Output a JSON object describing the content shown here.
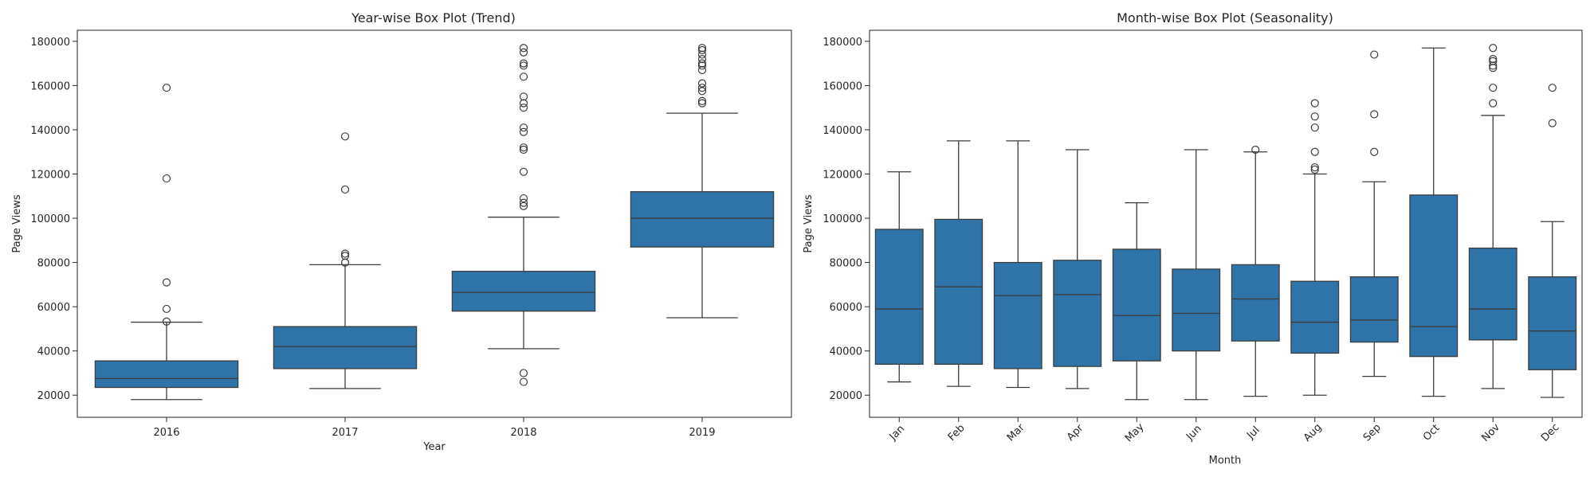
{
  "colors": {
    "box_fill": "#2f74a8",
    "line": "#3d3d3d",
    "axis": "#262626"
  },
  "chart_data": [
    {
      "type": "box",
      "title": "Year-wise Box Plot (Trend)",
      "xlabel": "Year",
      "ylabel": "Page Views",
      "ylim": [
        10000,
        185000
      ],
      "yticks": [
        20000,
        40000,
        60000,
        80000,
        100000,
        120000,
        140000,
        160000,
        180000
      ],
      "ytick_labels": [
        "20000",
        "40000",
        "60000",
        "80000",
        "100000",
        "120000",
        "140000",
        "160000",
        "180000"
      ],
      "xtick_rotation": 0,
      "grid": false,
      "categories": [
        "2016",
        "2017",
        "2018",
        "2019"
      ],
      "boxes": [
        {
          "min": 18000,
          "q1": 23500,
          "median": 27500,
          "q3": 35500,
          "max": 53000,
          "outliers": [
            53300,
            59000,
            71000,
            118000,
            159000
          ]
        },
        {
          "min": 23000,
          "q1": 32000,
          "median": 42000,
          "q3": 51000,
          "max": 79000,
          "outliers": [
            80000,
            83000,
            84000,
            113000,
            137000
          ]
        },
        {
          "min": 41000,
          "q1": 58000,
          "median": 66500,
          "q3": 76000,
          "max": 100500,
          "outliers": [
            26000,
            30000,
            105500,
            107000,
            109000,
            121000,
            131000,
            132000,
            139000,
            141000,
            150000,
            152000,
            155000,
            164000,
            169000,
            170000,
            175000,
            177000
          ]
        },
        {
          "min": 55000,
          "q1": 87000,
          "median": 100000,
          "q3": 112000,
          "max": 147500,
          "outliers": [
            152000,
            153000,
            157500,
            159000,
            161000,
            167000,
            169000,
            170000,
            172000,
            174000,
            176000,
            177000
          ]
        }
      ]
    },
    {
      "type": "box",
      "title": "Month-wise Box Plot (Seasonality)",
      "xlabel": "Month",
      "ylabel": "Page Views",
      "ylim": [
        10000,
        185000
      ],
      "yticks": [
        20000,
        40000,
        60000,
        80000,
        100000,
        120000,
        140000,
        160000,
        180000
      ],
      "ytick_labels": [
        "20000",
        "40000",
        "60000",
        "80000",
        "100000",
        "120000",
        "140000",
        "160000",
        "180000"
      ],
      "xtick_rotation": -45,
      "grid": false,
      "categories": [
        "Jan",
        "Feb",
        "Mar",
        "Apr",
        "May",
        "Jun",
        "Jul",
        "Aug",
        "Sep",
        "Oct",
        "Nov",
        "Dec"
      ],
      "boxes": [
        {
          "min": 26000,
          "q1": 34000,
          "median": 59000,
          "q3": 95000,
          "max": 121000,
          "outliers": []
        },
        {
          "min": 24000,
          "q1": 34000,
          "median": 69000,
          "q3": 99500,
          "max": 135000,
          "outliers": []
        },
        {
          "min": 23500,
          "q1": 32000,
          "median": 65000,
          "q3": 80000,
          "max": 135000,
          "outliers": []
        },
        {
          "min": 23000,
          "q1": 33000,
          "median": 65500,
          "q3": 81000,
          "max": 131000,
          "outliers": []
        },
        {
          "min": 18000,
          "q1": 35500,
          "median": 56000,
          "q3": 86000,
          "max": 107000,
          "outliers": []
        },
        {
          "min": 18000,
          "q1": 40000,
          "median": 57000,
          "q3": 77000,
          "max": 131000,
          "outliers": []
        },
        {
          "min": 19500,
          "q1": 44500,
          "median": 63500,
          "q3": 79000,
          "max": 130000,
          "outliers": [
            131000
          ]
        },
        {
          "min": 20000,
          "q1": 39000,
          "median": 53000,
          "q3": 71500,
          "max": 120000,
          "outliers": [
            122000,
            123000,
            130000,
            141000,
            146000,
            152000
          ]
        },
        {
          "min": 28500,
          "q1": 44000,
          "median": 54000,
          "q3": 73500,
          "max": 116500,
          "outliers": [
            130000,
            147000,
            174000
          ]
        },
        {
          "min": 19500,
          "q1": 37500,
          "median": 51000,
          "q3": 110500,
          "max": 177000,
          "outliers": []
        },
        {
          "min": 23000,
          "q1": 45000,
          "median": 59000,
          "q3": 86500,
          "max": 146500,
          "outliers": [
            152000,
            159000,
            168000,
            169000,
            171000,
            172000,
            177000
          ]
        },
        {
          "min": 19000,
          "q1": 31500,
          "median": 49000,
          "q3": 73500,
          "max": 98500,
          "outliers": [
            143000,
            159000
          ]
        }
      ]
    }
  ]
}
